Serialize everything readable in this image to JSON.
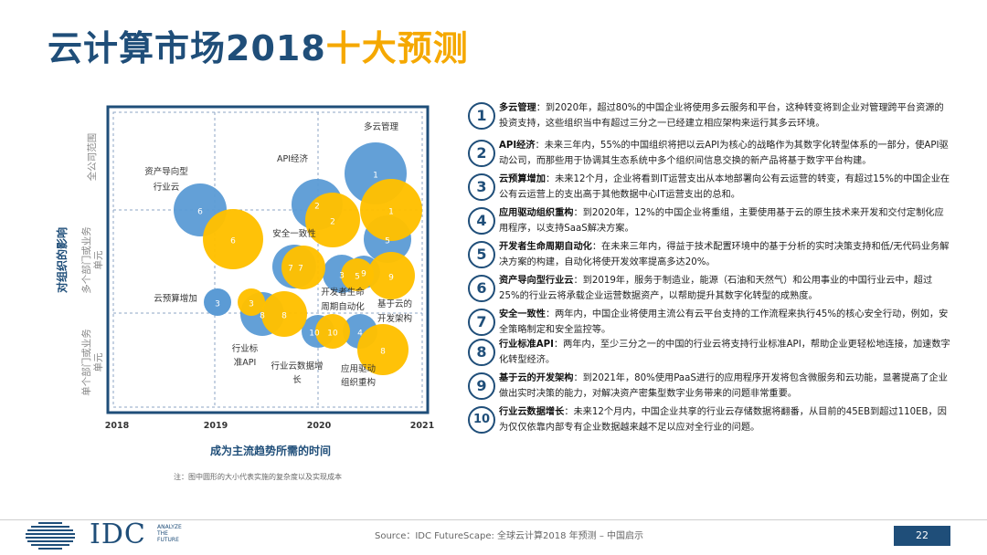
{
  "title": {
    "part1": "云计算市场2018",
    "part2": "十大预测"
  },
  "chart_data": {
    "type": "scatter",
    "xlabel": "成为主流趋势所需的时间",
    "ylabel": "对组织的影响",
    "x_ticks": [
      "2018",
      "2019",
      "2020",
      "2021"
    ],
    "y_categories": [
      "全公司范围",
      "多个部门或业务单元",
      "单个部门或业务单元"
    ],
    "colors": {
      "blue": "#5b9bd5",
      "gold": "#ffc000",
      "frame": "#1f4e79",
      "grid": "#8ea6c4",
      "axis_label": "#1f4e79"
    },
    "series": [
      {
        "name": "blue",
        "bubbles": [
          {
            "id": "1",
            "label": "1"
          },
          {
            "id": "2",
            "label": "2"
          },
          {
            "id": "6",
            "label": "6"
          },
          {
            "id": "7",
            "label": "7"
          },
          {
            "id": "3",
            "label": "3"
          },
          {
            "id": "5",
            "label": "5"
          },
          {
            "id": "9",
            "label": "9"
          },
          {
            "id": "8",
            "label": "8"
          },
          {
            "id": "10",
            "label": "10"
          },
          {
            "id": "4",
            "label": "4"
          }
        ]
      },
      {
        "name": "gold",
        "bubbles": [
          {
            "id": "1",
            "label": "1"
          },
          {
            "id": "2",
            "label": "2"
          },
          {
            "id": "6",
            "label": "6"
          },
          {
            "id": "7",
            "label": "7"
          },
          {
            "id": "3",
            "label": "3"
          },
          {
            "id": "5",
            "label": "5"
          },
          {
            "id": "9",
            "label": "9"
          },
          {
            "id": "8",
            "label": "8"
          },
          {
            "id": "10",
            "label": "10"
          },
          {
            "id": "4",
            "label": "4"
          }
        ]
      }
    ],
    "annotations": [
      "多云管理",
      "API经济",
      "资产导向型",
      "行业云",
      "安全一致性",
      "云预算增加",
      "开发者生命",
      "周期自动化",
      "基于云的",
      "开发架构",
      "行业标",
      "准API",
      "行业云数据增",
      "长",
      "应用驱动",
      "组织重构"
    ]
  },
  "items": [
    {
      "num": "1",
      "title": "多云管理",
      "text": "：到2020年，超过80%的中国企业将使用多云服务和平台，这种转变将到企业对管理跨平台资源的投资支持，这些组织当中有超过三分之一已经建立相应架构来运行其多云环境。"
    },
    {
      "num": "2",
      "title": "API经济",
      "text": "：未来三年内，55%的中国组织将把以云API为核心的战略作为其数字化转型体系的一部分，使API驱动公司，而那些用于协调其生态系统中多个组织间信息交换的新产品将基于数字平台构建。"
    },
    {
      "num": "3",
      "title": "云预算增加",
      "text": "：未来12个月，企业将看到IT运营支出从本地部署向公有云运营的转变，有超过15%的中国企业在公有云运营上的支出高于其他数据中心IT运营支出的总和。"
    },
    {
      "num": "4",
      "title": "应用驱动组织重构",
      "text": "：到2020年，12%的中国企业将重组，主要使用基于云的原生技术来开发和交付定制化应用程序，以支持SaaS解决方案。"
    },
    {
      "num": "5",
      "title": "开发者生命周期自动化",
      "text": "：在未来三年内，得益于技术配置环境中的基于分析的实时决策支持和低/无代码业务解决方案的构建，自动化将使开发效率提高多达20%。"
    },
    {
      "num": "6",
      "title": "资产导向型行业云",
      "text": "：到2019年，服务于制造业，能源（石油和天然气）和公用事业的中国行业云中，超过25%的行业云将承载企业运营数据资产，以帮助提升其数字化转型的成熟度。"
    },
    {
      "num": "7",
      "title": "安全一致性",
      "text": "：两年内，中国企业将使用主流公有云平台支持的工作流程来执行45%的核心安全行动，例如，安全策略制定和安全监控等。"
    },
    {
      "num": "8",
      "title": "行业标准API",
      "text": "：两年内，至少三分之一的中国的行业云将支持行业标准API，帮助企业更轻松地连接，加速数字化转型经济。"
    },
    {
      "num": "9",
      "title": "基于云的开发架构",
      "text": "：到2021年，80%使用PaaS进行的应用程序开发将包含微服务和云功能，显著提高了企业做出实时决策的能力，对解决资产密集型数字业务带来的问题非常重要。"
    },
    {
      "num": "10",
      "title": "行业云数据增长",
      "text": "：未来12个月内，中国企业共享的行业云存储数据将翻番，从目前的45EB到超过110EB，因为仅仅依靠内部专有企业数据越来越不足以应对全行业的问题。"
    }
  ],
  "note": "注：图中圆形的大小代表实施的复杂度以及实现成本",
  "logo": {
    "name": "IDC",
    "tagline_1": "ANALYZE",
    "tagline_2": "THE",
    "tagline_3": "FUTURE"
  },
  "source": "Source：IDC FutureScape: 全球云计算2018 年预测 – 中国启示",
  "page_number": "22"
}
